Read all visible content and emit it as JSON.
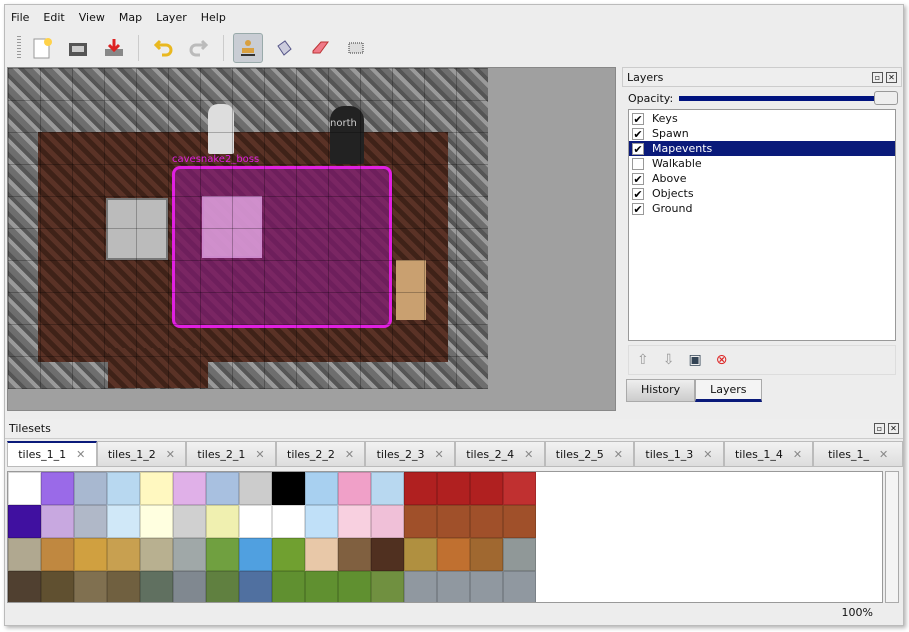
{
  "menu": [
    "File",
    "Edit",
    "View",
    "Map",
    "Layer",
    "Help"
  ],
  "toolbar": {
    "icons": [
      "new-icon",
      "open-icon",
      "save-icon",
      "undo-icon",
      "redo-icon",
      "stamp-brush-icon",
      "bucket-fill-icon",
      "eraser-icon",
      "rect-select-icon"
    ],
    "active": "stamp-brush-icon"
  },
  "map": {
    "labels": {
      "boss": "cavesnake2_boss",
      "north": "north"
    }
  },
  "layers_dock": {
    "title": "Layers",
    "opacity_label": "Opacity:",
    "opacity": 1.0,
    "layers": [
      {
        "name": "Keys",
        "visible": true
      },
      {
        "name": "Spawn",
        "visible": true
      },
      {
        "name": "Mapevents",
        "visible": true,
        "selected": true
      },
      {
        "name": "Walkable",
        "visible": false
      },
      {
        "name": "Above",
        "visible": true
      },
      {
        "name": "Objects",
        "visible": true
      },
      {
        "name": "Ground",
        "visible": true
      }
    ],
    "tabs": [
      "History",
      "Layers"
    ],
    "active_tab": "Layers"
  },
  "tilesets": {
    "title": "Tilesets",
    "tabs": [
      "tiles_1_1",
      "tiles_1_2",
      "tiles_2_1",
      "tiles_2_2",
      "tiles_2_3",
      "tiles_2_4",
      "tiles_2_5",
      "tiles_1_3",
      "tiles_1_4",
      "tiles_1_"
    ],
    "active": "tiles_1_1"
  },
  "status": {
    "zoom": "100%"
  },
  "colors": {
    "selection": "#0a1a7a",
    "object": "#e020e0"
  }
}
